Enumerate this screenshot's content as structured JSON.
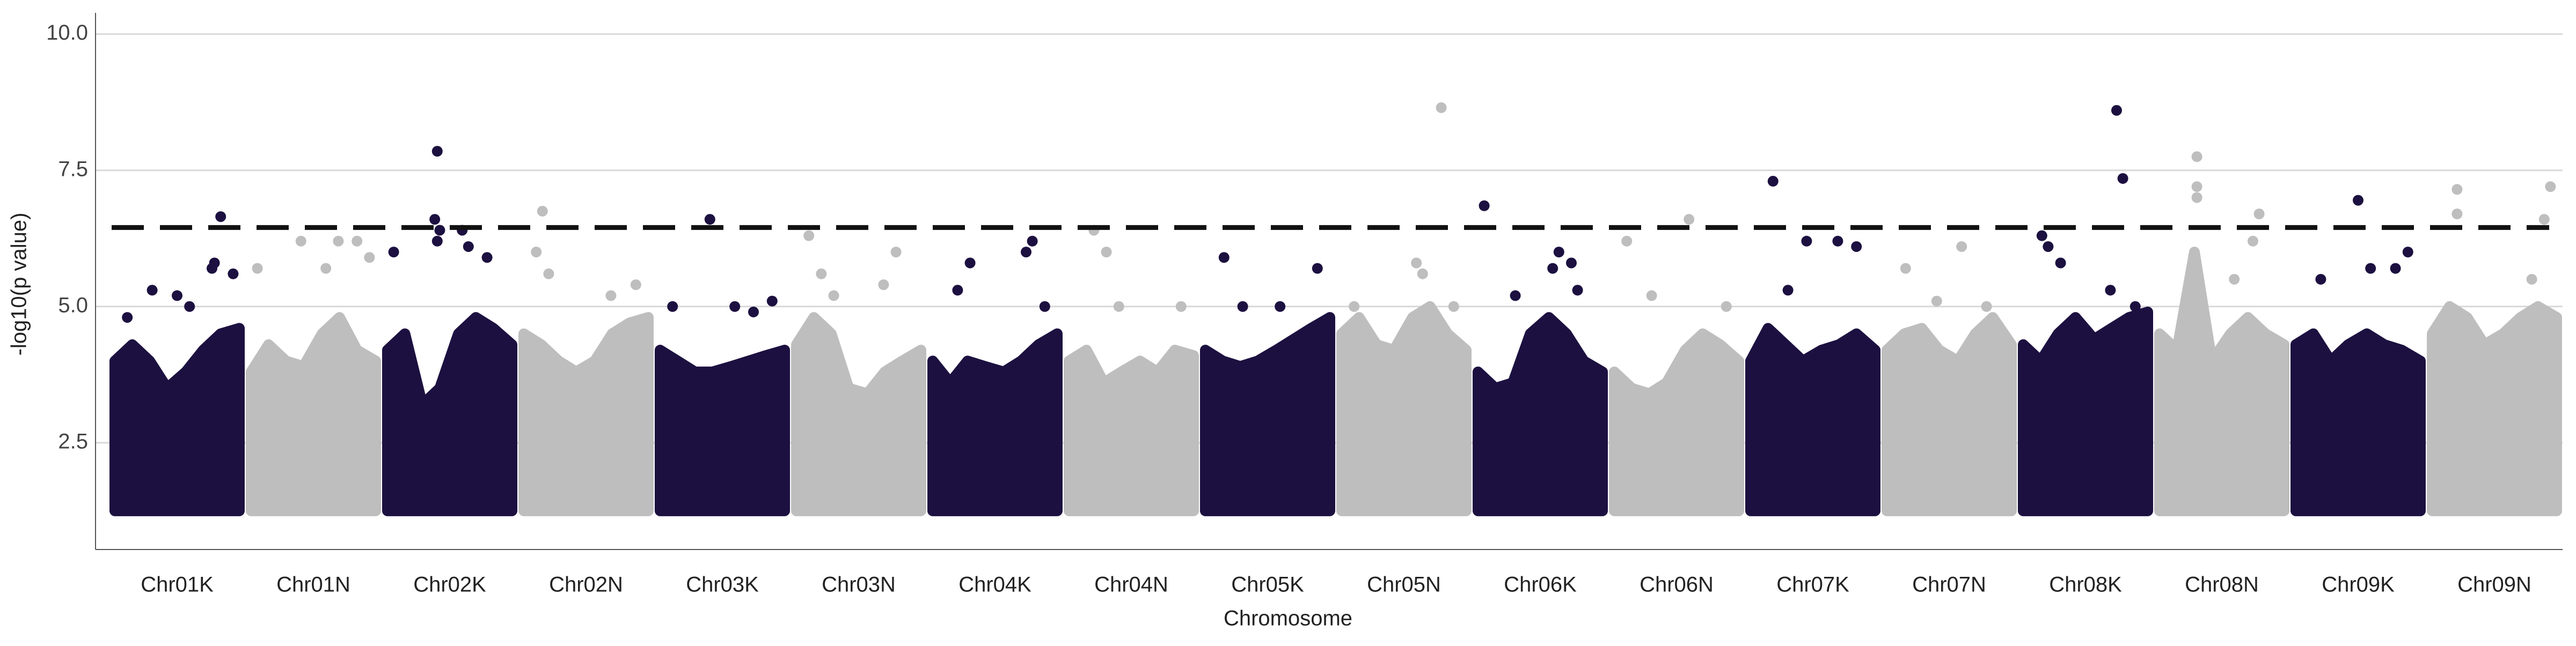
{
  "chart_data": {
    "type": "manhattan",
    "xlabel": "Chromosome",
    "ylabel": "-log10(p value)",
    "ylim": [
      0.54,
      10.39
    ],
    "yticks": [
      2.5,
      {
        "value": 5,
        "label": "5.0"
      },
      7.5,
      {
        "value": 10,
        "label": "10.0"
      }
    ],
    "grid": true,
    "threshold": 6.45,
    "bulk_floor": 1.25,
    "bulk_x": [
      0,
      0.14,
      0.28,
      0.42,
      0.57,
      0.71,
      0.85,
      1
    ],
    "chromosomes": [
      {
        "name": "Chr01K",
        "color": "#1c1040",
        "bulk": [
          4.0,
          4.3,
          4.0,
          3.5,
          3.8,
          4.2,
          4.5,
          4.6
        ],
        "points_x": [
          0.85,
          0.8,
          0.78,
          0.3,
          0.5,
          0.95,
          0.1,
          0.6
        ],
        "points_y": [
          6.65,
          5.8,
          5.7,
          5.3,
          5.2,
          5.6,
          4.8,
          5.0
        ]
      },
      {
        "name": "Chr01N",
        "color": "#bebebe",
        "bulk": [
          3.8,
          4.3,
          4.0,
          3.9,
          4.5,
          4.8,
          4.2,
          4.0
        ],
        "points_x": [
          0.05,
          0.4,
          0.6,
          0.7,
          0.95,
          0.85
        ],
        "points_y": [
          5.7,
          6.2,
          5.7,
          6.2,
          5.9,
          6.2
        ]
      },
      {
        "name": "Chr02K",
        "color": "#1c1040",
        "bulk": [
          4.2,
          4.5,
          3.2,
          3.5,
          4.5,
          4.8,
          4.6,
          4.3
        ],
        "points_x": [
          0.4,
          0.38,
          0.42,
          0.6,
          0.65,
          0.05,
          0.8,
          0.4
        ],
        "points_y": [
          7.85,
          6.6,
          6.4,
          6.4,
          6.1,
          6.0,
          5.9,
          6.2
        ]
      },
      {
        "name": "Chr02N",
        "color": "#bebebe",
        "bulk": [
          4.5,
          4.3,
          4.0,
          3.8,
          4.0,
          4.5,
          4.7,
          4.8
        ],
        "points_x": [
          0.15,
          0.1,
          0.2,
          0.9,
          0.7
        ],
        "points_y": [
          6.75,
          6.0,
          5.6,
          5.4,
          5.2
        ]
      },
      {
        "name": "Chr03K",
        "color": "#1c1040",
        "bulk": [
          4.2,
          4.0,
          3.8,
          3.8,
          3.9,
          4.0,
          4.1,
          4.2
        ],
        "points_x": [
          0.4,
          0.9,
          0.6,
          0.1,
          0.75
        ],
        "points_y": [
          6.6,
          5.1,
          5.0,
          5.0,
          4.9
        ]
      },
      {
        "name": "Chr03N",
        "color": "#bebebe",
        "bulk": [
          4.3,
          4.8,
          4.5,
          3.5,
          3.4,
          3.8,
          4.0,
          4.2
        ],
        "points_x": [
          0.1,
          0.2,
          0.8,
          0.7,
          0.3
        ],
        "points_y": [
          6.3,
          5.6,
          6.0,
          5.4,
          5.2
        ]
      },
      {
        "name": "Chr04K",
        "color": "#1c1040",
        "bulk": [
          4.0,
          3.6,
          4.0,
          3.9,
          3.8,
          4.0,
          4.3,
          4.5
        ],
        "points_x": [
          0.3,
          0.8,
          0.75,
          0.9,
          0.2
        ],
        "points_y": [
          5.8,
          6.2,
          6.0,
          5.0,
          5.3
        ]
      },
      {
        "name": "Chr04N",
        "color": "#bebebe",
        "bulk": [
          4.0,
          4.2,
          3.6,
          3.8,
          4.0,
          3.8,
          4.2,
          4.1
        ],
        "points_x": [
          0.2,
          0.3,
          0.4,
          0.9
        ],
        "points_y": [
          6.4,
          6.0,
          5.0,
          5.0
        ]
      },
      {
        "name": "Chr05K",
        "color": "#1c1040",
        "bulk": [
          4.2,
          4.0,
          3.9,
          4.0,
          4.2,
          4.4,
          4.6,
          4.8
        ],
        "points_x": [
          0.15,
          0.9,
          0.6,
          0.3
        ],
        "points_y": [
          5.9,
          5.7,
          5.0,
          5.0
        ]
      },
      {
        "name": "Chr05N",
        "color": "#bebebe",
        "bulk": [
          4.5,
          4.8,
          4.3,
          4.2,
          4.8,
          5.0,
          4.5,
          4.2
        ],
        "points_x": [
          0.8,
          0.6,
          0.65,
          0.9,
          0.1
        ],
        "points_y": [
          8.65,
          5.8,
          5.6,
          5.0,
          5.0
        ]
      },
      {
        "name": "Chr06K",
        "color": "#1c1040",
        "bulk": [
          3.8,
          3.5,
          3.6,
          4.5,
          4.8,
          4.5,
          4.0,
          3.8
        ],
        "points_x": [
          0.05,
          0.3,
          0.65,
          0.75,
          0.6,
          0.8
        ],
        "points_y": [
          6.85,
          5.2,
          6.0,
          5.8,
          5.7,
          5.3
        ]
      },
      {
        "name": "Chr06N",
        "color": "#bebebe",
        "bulk": [
          3.8,
          3.5,
          3.4,
          3.6,
          4.2,
          4.5,
          4.3,
          4.0
        ],
        "points_x": [
          0.6,
          0.1,
          0.3,
          0.9
        ],
        "points_y": [
          6.6,
          6.2,
          5.2,
          5.0
        ]
      },
      {
        "name": "Chr07K",
        "color": "#1c1040",
        "bulk": [
          4.0,
          4.6,
          4.3,
          4.0,
          4.2,
          4.3,
          4.5,
          4.2
        ],
        "points_x": [
          0.18,
          0.45,
          0.7,
          0.85,
          0.3
        ],
        "points_y": [
          7.3,
          6.2,
          6.2,
          6.1,
          5.3
        ]
      },
      {
        "name": "Chr07N",
        "color": "#bebebe",
        "bulk": [
          4.2,
          4.5,
          4.6,
          4.2,
          4.0,
          4.5,
          4.8,
          4.3
        ],
        "points_x": [
          0.15,
          0.6,
          0.8,
          0.4
        ],
        "points_y": [
          5.7,
          6.1,
          5.0,
          5.1
        ]
      },
      {
        "name": "Chr08K",
        "color": "#1c1040",
        "bulk": [
          4.3,
          4.0,
          4.5,
          4.8,
          4.4,
          4.6,
          4.8,
          4.9
        ],
        "points_x": [
          0.75,
          0.8,
          0.15,
          0.3,
          0.2,
          0.7,
          0.9
        ],
        "points_y": [
          8.6,
          7.35,
          6.3,
          5.8,
          6.1,
          5.3,
          5.0
        ]
      },
      {
        "name": "Chr08N",
        "color": "#bebebe",
        "bulk": [
          4.5,
          4.2,
          6.0,
          4.0,
          4.5,
          4.8,
          4.5,
          4.3
        ],
        "points_x": [
          0.3,
          0.3,
          0.3,
          0.8,
          0.75,
          0.6
        ],
        "points_y": [
          7.75,
          7.2,
          7.0,
          6.7,
          6.2,
          5.5
        ]
      },
      {
        "name": "Chr09K",
        "color": "#1c1040",
        "bulk": [
          4.3,
          4.5,
          4.0,
          4.3,
          4.5,
          4.3,
          4.2,
          4.0
        ],
        "points_x": [
          0.5,
          0.9,
          0.8,
          0.6,
          0.2
        ],
        "points_y": [
          6.95,
          6.0,
          5.7,
          5.7,
          5.5
        ]
      },
      {
        "name": "Chr09N",
        "color": "#bebebe",
        "bulk": [
          4.5,
          5.0,
          4.8,
          4.3,
          4.5,
          4.8,
          5.0,
          4.8
        ],
        "points_x": [
          0.2,
          0.95,
          0.2,
          0.9,
          0.8
        ],
        "points_y": [
          7.15,
          7.2,
          6.7,
          6.6,
          5.5
        ]
      }
    ]
  }
}
